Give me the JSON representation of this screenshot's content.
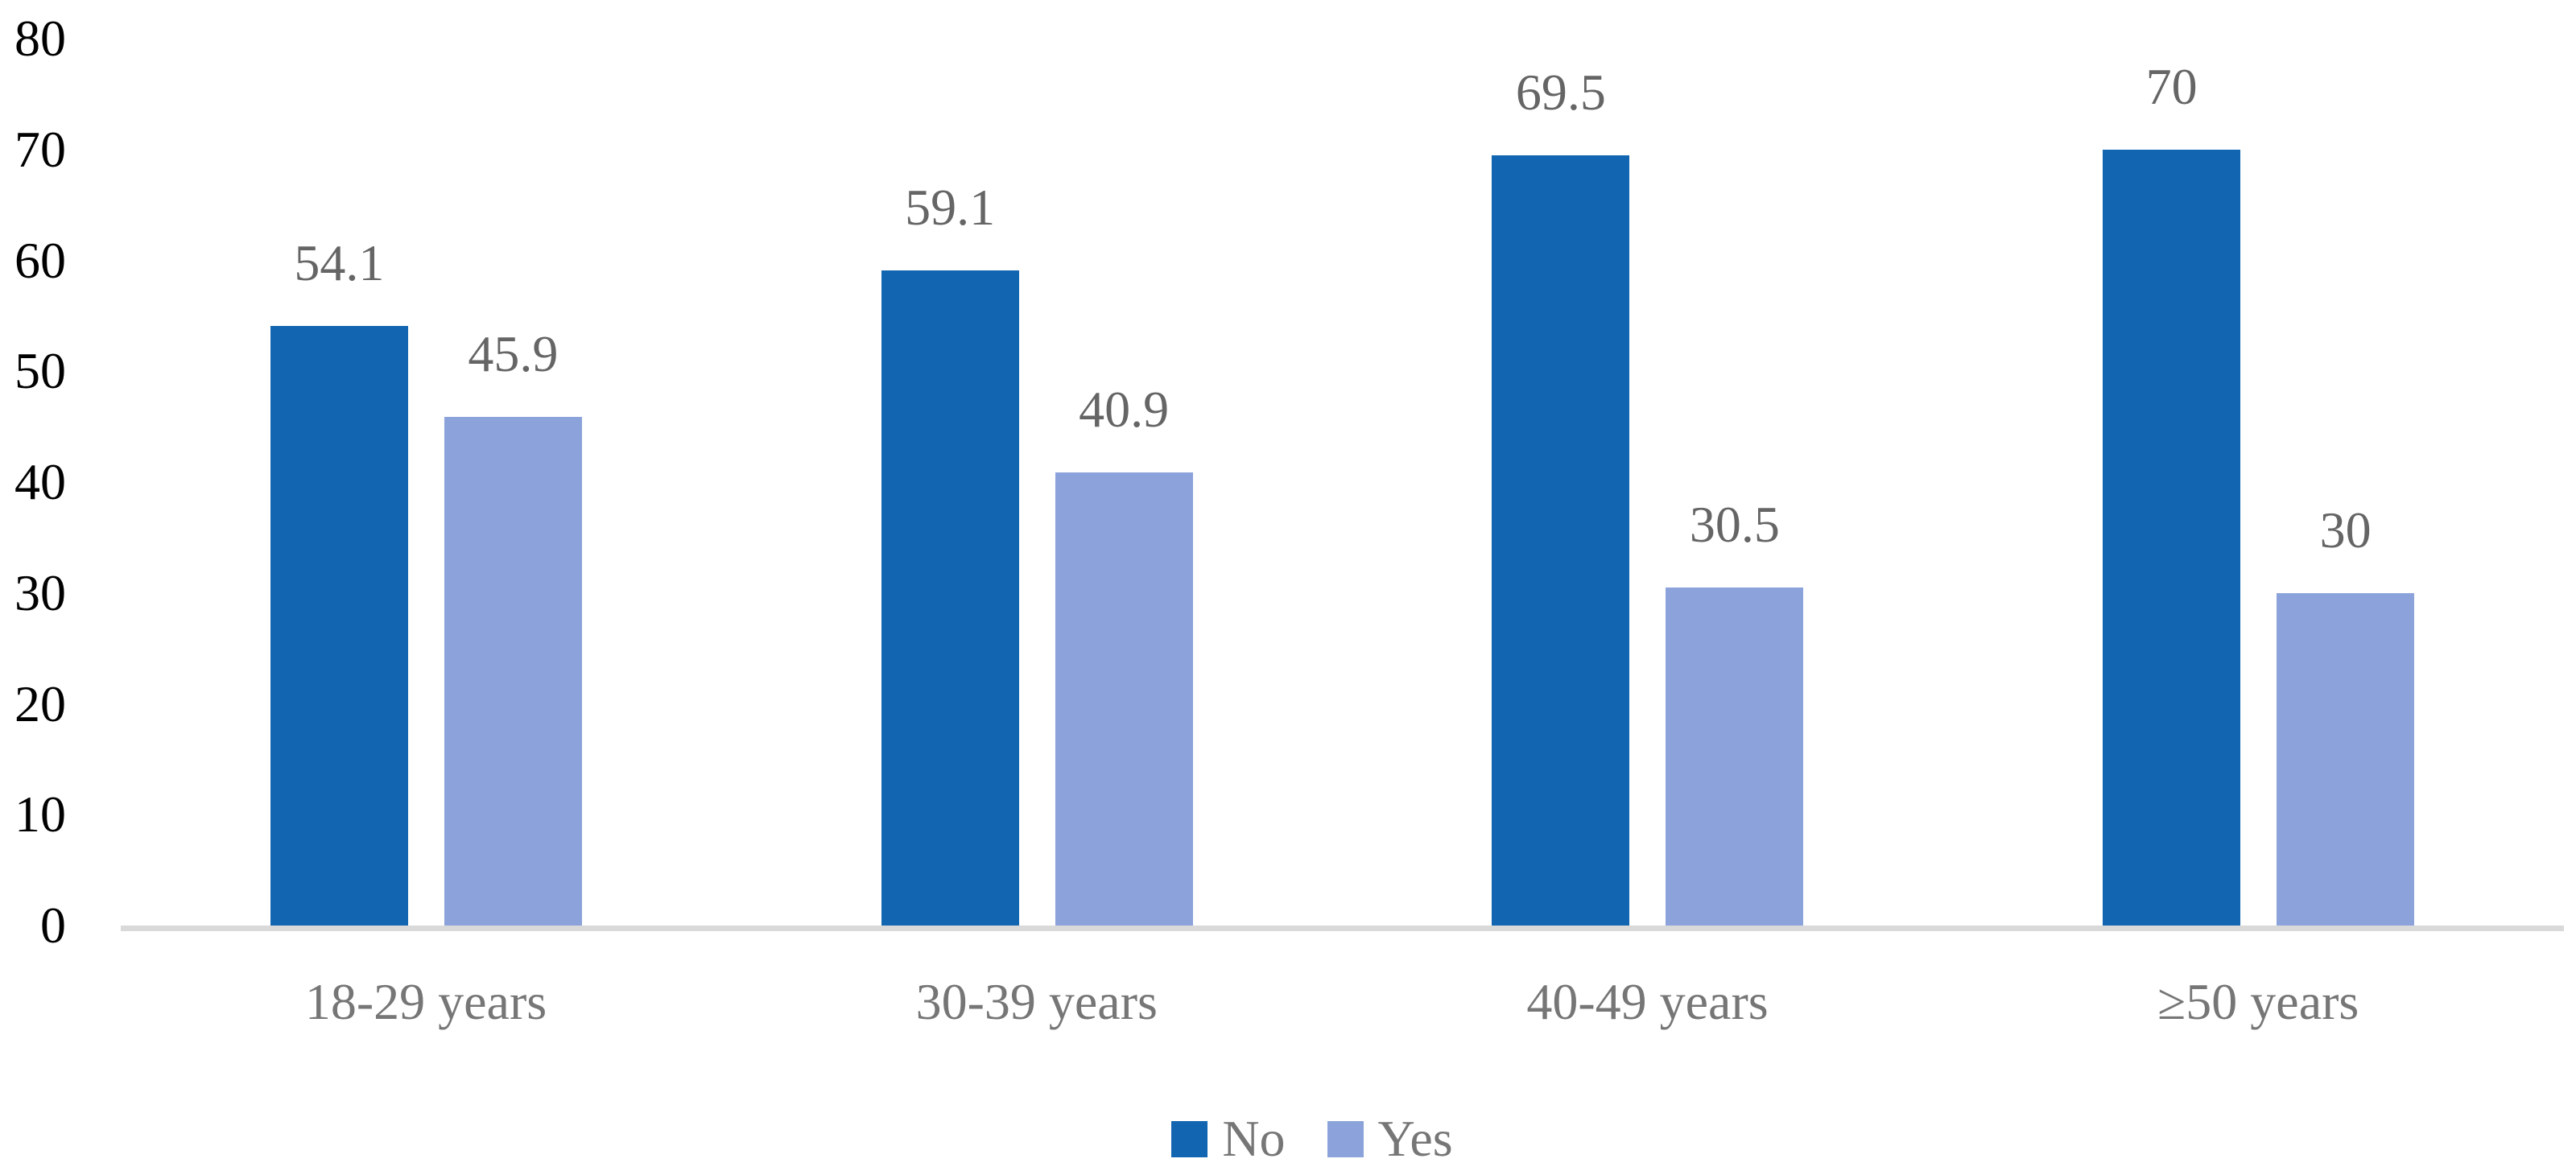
{
  "chart_data": {
    "type": "bar",
    "title": "",
    "xlabel": "",
    "ylabel": "",
    "categories": [
      "18-29 years",
      "30-39 years",
      "40-49 years",
      "≥50 years"
    ],
    "series": [
      {
        "name": "No",
        "color": "#1265B1",
        "values": [
          54.1,
          59.1,
          69.5,
          70
        ]
      },
      {
        "name": "Yes",
        "color": "#8BA3DA",
        "values": [
          45.9,
          40.9,
          30.5,
          30
        ]
      }
    ],
    "ylim": [
      0,
      80
    ],
    "yticks": [
      0,
      10,
      20,
      30,
      40,
      50,
      60,
      70,
      80
    ],
    "grid": false,
    "legend_position": "bottom",
    "data_labels": true
  },
  "colors": {
    "axis_line": "#D9D9D9",
    "ytick_text": "#000000",
    "data_label_text": "#656565",
    "category_text": "#767676",
    "legend_text": "#767676",
    "background": "#FFFFFF"
  }
}
